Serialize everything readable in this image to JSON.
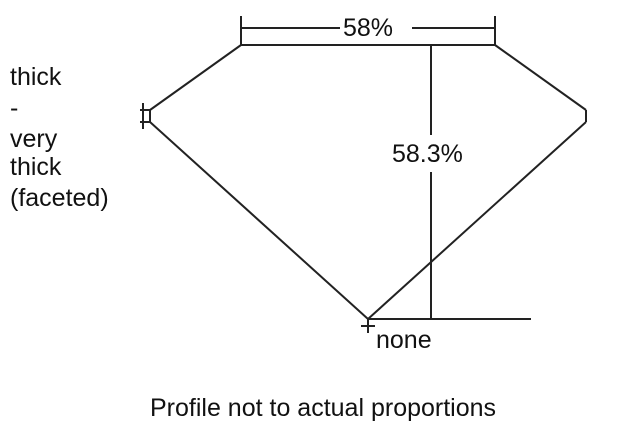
{
  "diagram": {
    "table_percent": "58%",
    "depth_percent": "58.3%",
    "girdle_label_lines": [
      "thick",
      "-",
      "very",
      "thick",
      "(faceted)"
    ],
    "culet_label": "none",
    "caption": "Profile not to actual proportions",
    "line_color": "#222222"
  }
}
